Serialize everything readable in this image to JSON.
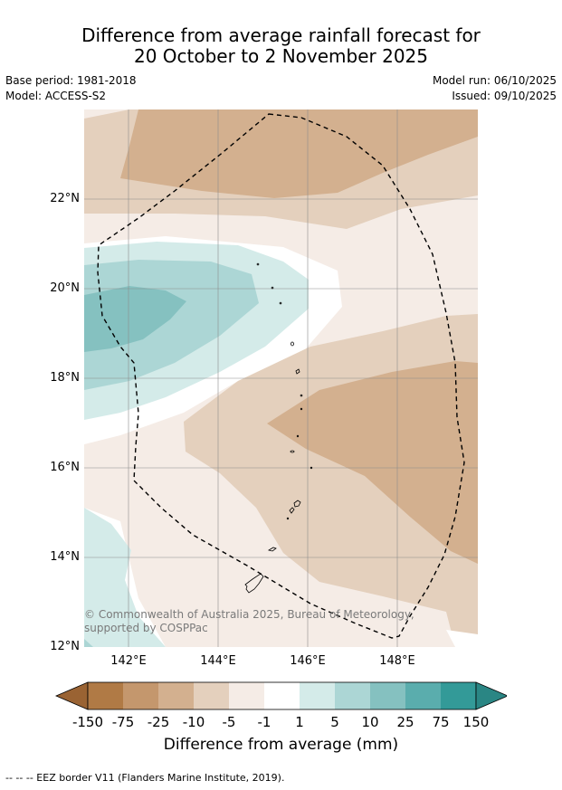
{
  "title": {
    "line1": "Difference from average rainfall forecast for",
    "line2": "20 October to 2 November 2025"
  },
  "meta": {
    "base_period": "Base period: 1981-2018",
    "model": "Model: ACCESS-S2",
    "model_run": "Model run: 06/10/2025",
    "issued": "Issued: 09/10/2025"
  },
  "map": {
    "lat_labels": [
      "22°N",
      "20°N",
      "18°N",
      "16°N",
      "14°N",
      "12°N"
    ],
    "lon_labels": [
      "142°E",
      "144°E",
      "146°E",
      "148°E"
    ],
    "copyright": "© Commonwealth of Australia 2025, Bureau of Meteorology, supported by COSPPac"
  },
  "colorbar": {
    "ticks": [
      "-150",
      "-75",
      "-25",
      "-10",
      "-5",
      "-1",
      "1",
      "5",
      "10",
      "25",
      "75",
      "150"
    ],
    "colors": [
      "#b07a45",
      "#c4976d",
      "#d3b08f",
      "#e4d0bd",
      "#f5ece6",
      "#ffffff",
      "#d4ebe9",
      "#acd6d5",
      "#85c1c0",
      "#5aadad",
      "#339a98"
    ],
    "under_color": "#9a6333",
    "over_color": "#2a8684",
    "label": "Difference from average (mm)"
  },
  "footnote": "--  --  -- EEZ border V11 (Flanders Marine Institute, 2019)."
}
